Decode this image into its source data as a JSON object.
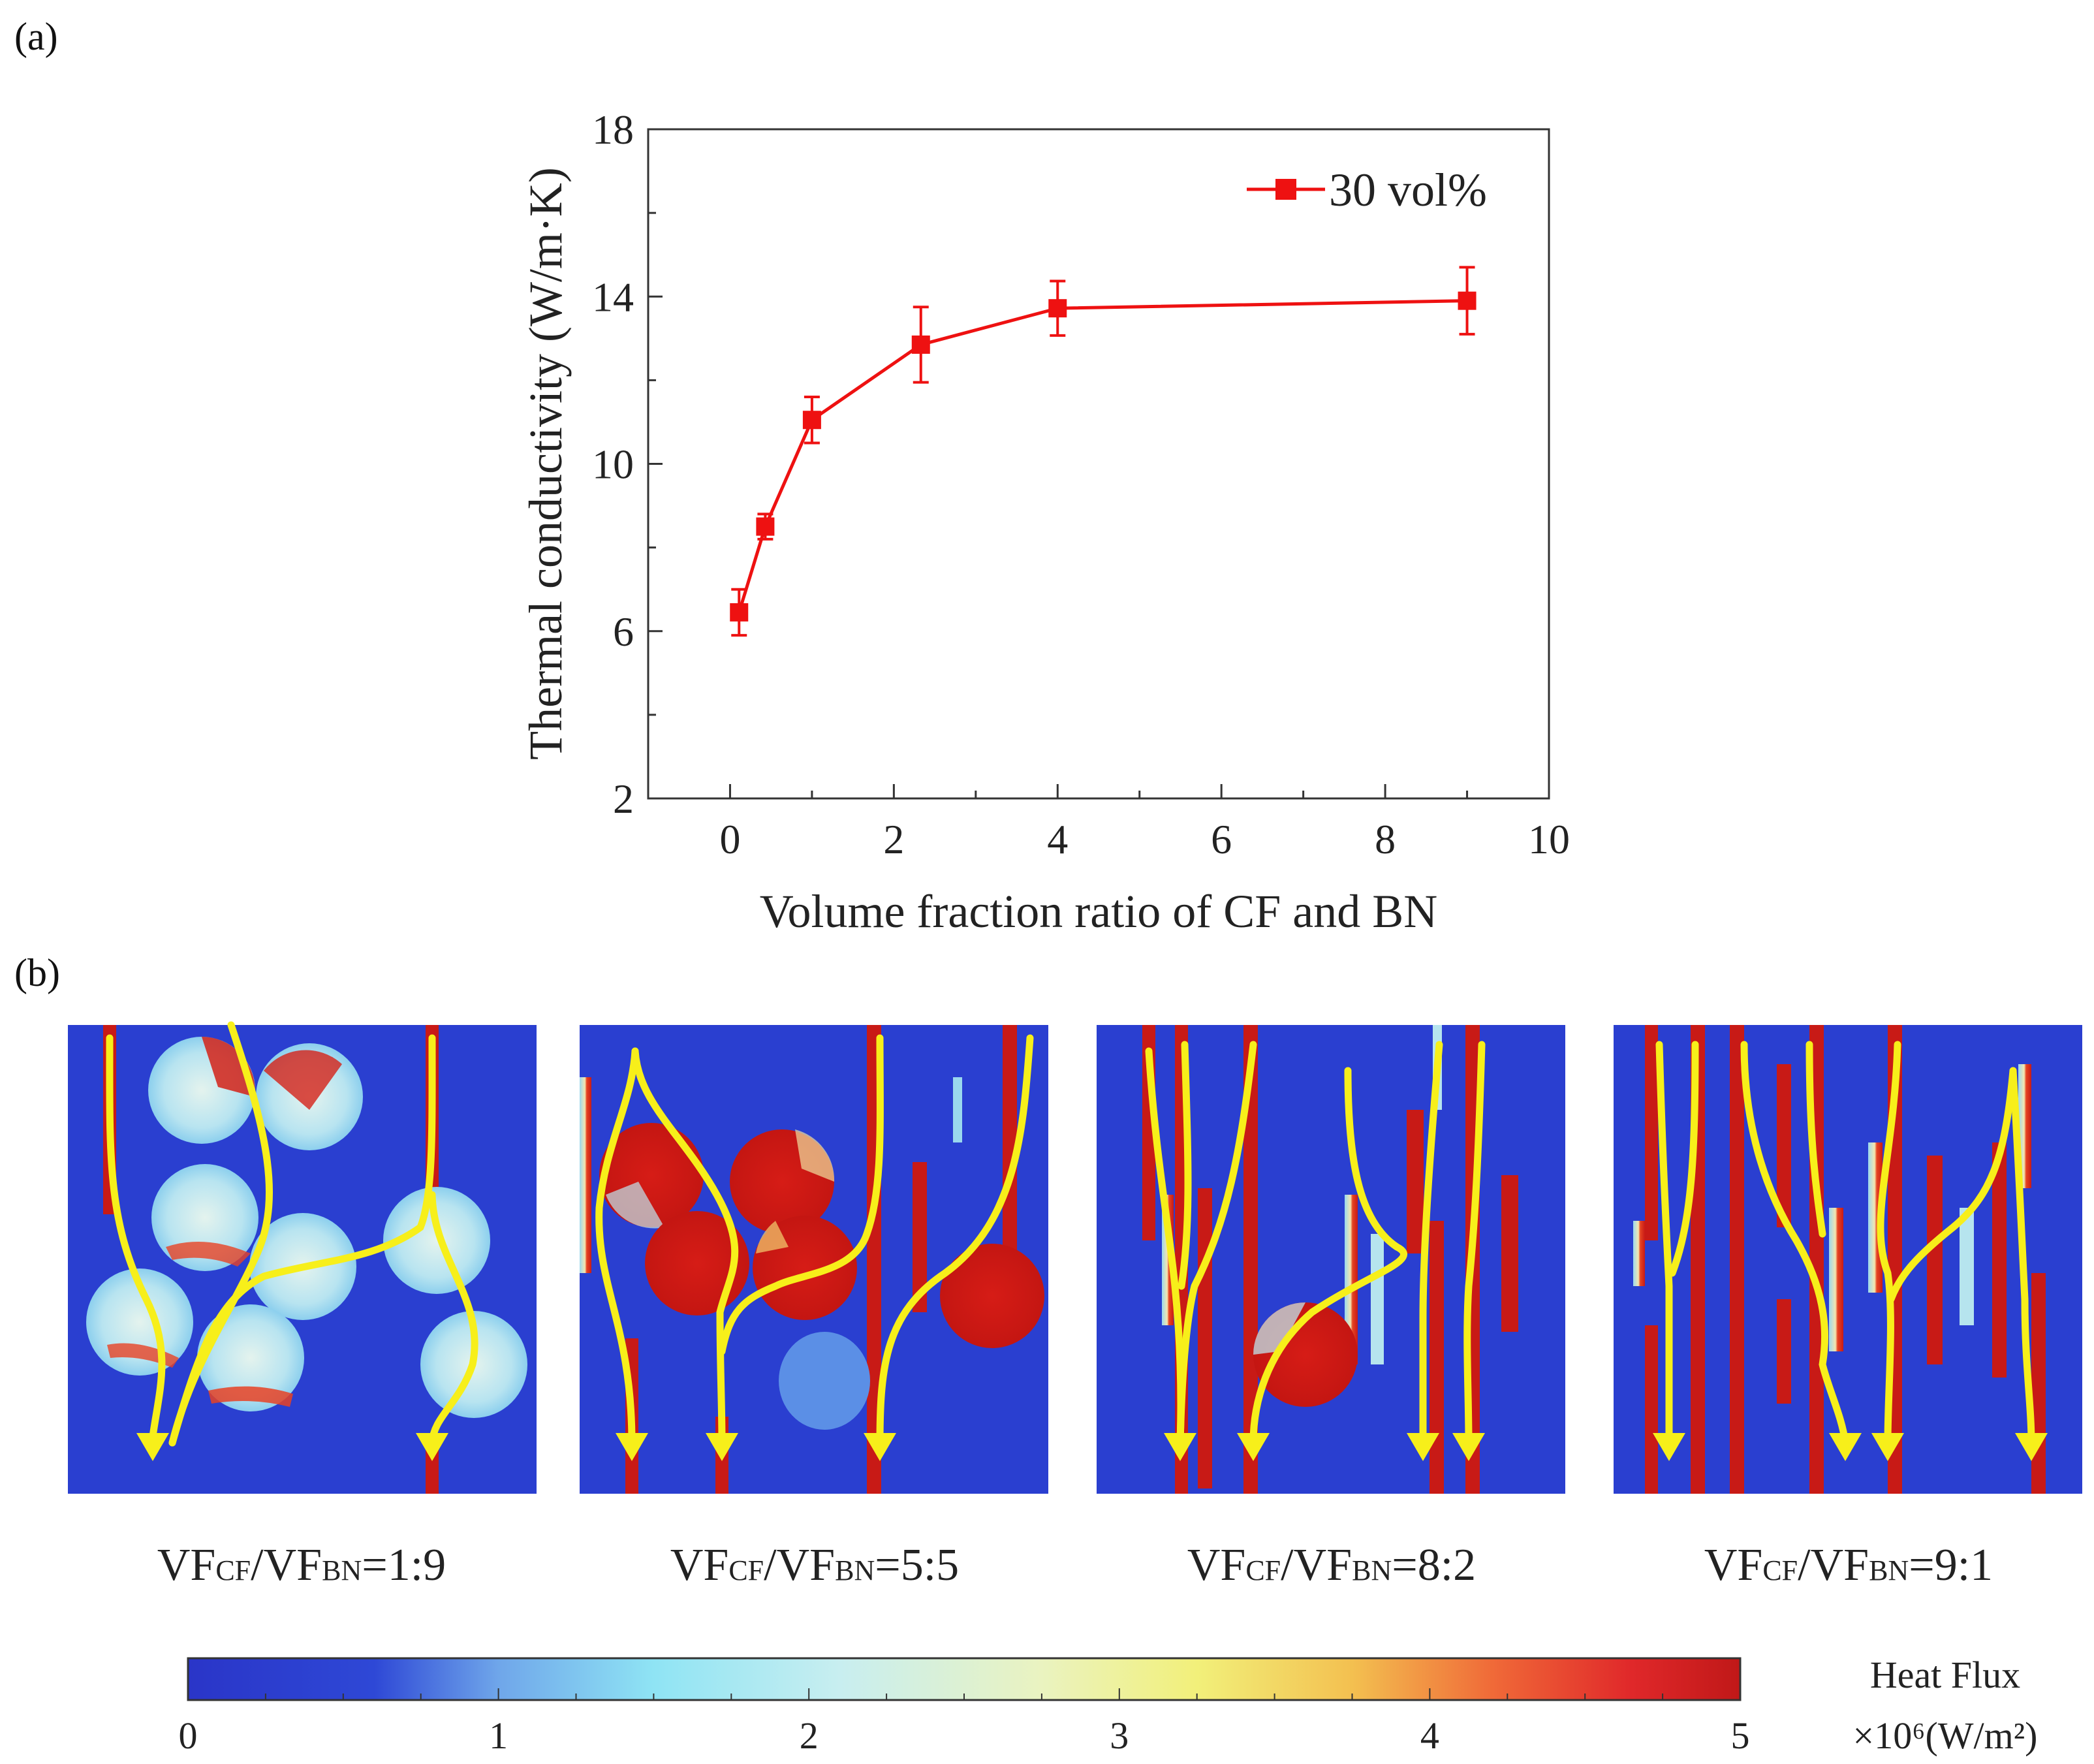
{
  "panel_a_label": "(a)",
  "panel_b_label": "(b)",
  "chart_data": {
    "type": "line",
    "title": "",
    "xlabel": "Volume fraction ratio of CF and BN",
    "ylabel": "Thermal conductivity (W/m·K)",
    "xlim": [
      -1,
      10
    ],
    "ylim": [
      2,
      18
    ],
    "xticks": [
      0,
      2,
      4,
      6,
      8,
      10
    ],
    "yticks": [
      2,
      6,
      10,
      14,
      18
    ],
    "legend": "top-right",
    "series": [
      {
        "name": "30 vol%",
        "color": "#ee1111",
        "x": [
          0.11,
          0.43,
          1.0,
          2.33,
          4.0,
          9.0
        ],
        "y": [
          6.45,
          8.5,
          11.05,
          12.85,
          13.72,
          13.9
        ],
        "error": [
          0.55,
          0.3,
          0.55,
          0.9,
          0.65,
          0.8
        ]
      }
    ]
  },
  "simulations": {
    "captions": [
      {
        "pre": "VF",
        "sub1": "CF",
        "mid": "/VF",
        "sub2": "BN",
        "ratio": "=1:9"
      },
      {
        "pre": "VF",
        "sub1": "CF",
        "mid": "/VF",
        "sub2": "BN",
        "ratio": "=5:5"
      },
      {
        "pre": "VF",
        "sub1": "CF",
        "mid": "/VF",
        "sub2": "BN",
        "ratio": "=8:2"
      },
      {
        "pre": "VF",
        "sub1": "CF",
        "mid": "/VF",
        "sub2": "BN",
        "ratio": "=9:1"
      }
    ],
    "colors": {
      "background": "#2a3fd0",
      "hot": "#cc1a14",
      "warm": "#f3a646",
      "cool": "#a6dff0",
      "arrow": "#f7ef1a"
    }
  },
  "colorbar": {
    "title": "Heat Flux",
    "unit": "×10⁶(W/m²)",
    "min": 0,
    "max": 5,
    "ticks": [
      "0",
      "1",
      "2",
      "3",
      "4",
      "5"
    ]
  }
}
